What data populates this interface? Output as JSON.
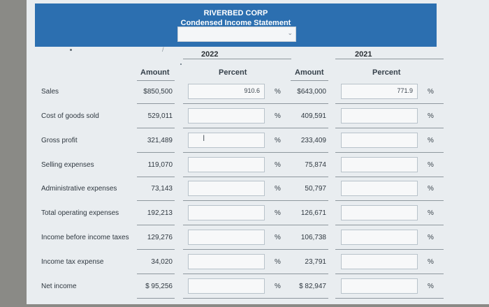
{
  "header": {
    "company": "RIVERBED CORP",
    "statement": "Condensed Income Statement",
    "dropdown_value": ""
  },
  "years": {
    "y1": "2022",
    "y2": "2021"
  },
  "columns": {
    "amount": "Amount",
    "percent": "Percent"
  },
  "percent_symbol": "%",
  "rows": [
    {
      "label": "Sales",
      "amount_2022": "$850,500",
      "percent_2022": "910.6",
      "amount_2021": "$643,000",
      "percent_2021": "771.9"
    },
    {
      "label": "Cost of goods sold",
      "amount_2022": "529,011",
      "percent_2022": "",
      "amount_2021": "409,591",
      "percent_2021": ""
    },
    {
      "label": "Gross profit",
      "amount_2022": "321,489",
      "percent_2022": "",
      "amount_2021": "233,409",
      "percent_2021": ""
    },
    {
      "label": "Selling expenses",
      "amount_2022": "119,070",
      "percent_2022": "",
      "amount_2021": "75,874",
      "percent_2021": ""
    },
    {
      "label": "Administrative expenses",
      "amount_2022": "73,143",
      "percent_2022": "",
      "amount_2021": "50,797",
      "percent_2021": ""
    },
    {
      "label": "Total operating expenses",
      "amount_2022": "192,213",
      "percent_2022": "",
      "amount_2021": "126,671",
      "percent_2021": ""
    },
    {
      "label": "Income before income taxes",
      "amount_2022": "129,276",
      "percent_2022": "",
      "amount_2021": "106,738",
      "percent_2021": ""
    },
    {
      "label": "Income tax expense",
      "amount_2022": "34,020",
      "percent_2022": "",
      "amount_2021": "23,791",
      "percent_2021": ""
    },
    {
      "label": "Net income",
      "amount_2022": "$ 95,256",
      "percent_2022": "",
      "amount_2021": "$ 82,947",
      "percent_2021": ""
    }
  ]
}
